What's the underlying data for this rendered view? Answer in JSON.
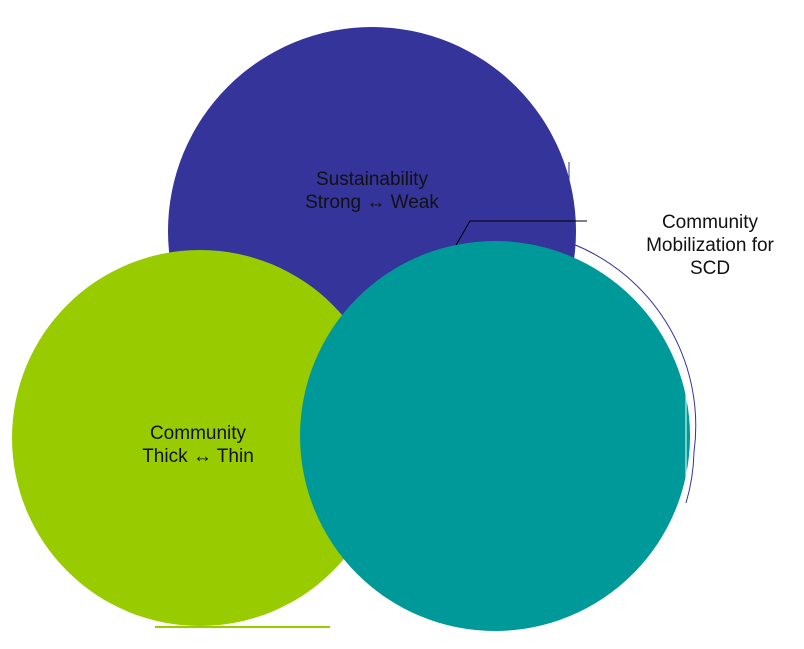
{
  "colors": {
    "sustainability": "#35349a",
    "community": "#99cc00",
    "mobilization": "#009999",
    "outline": "#35349a",
    "callout_line": "#000000"
  },
  "circles": {
    "sustainability": {
      "line1": "Sustainability",
      "line2": "Strong ↔ Weak"
    },
    "community": {
      "line1": "Community",
      "line2": "Thick ↔ Thin"
    }
  },
  "callout": {
    "line1": "Community",
    "line2": "Mobilization for",
    "line3": "SCD"
  }
}
